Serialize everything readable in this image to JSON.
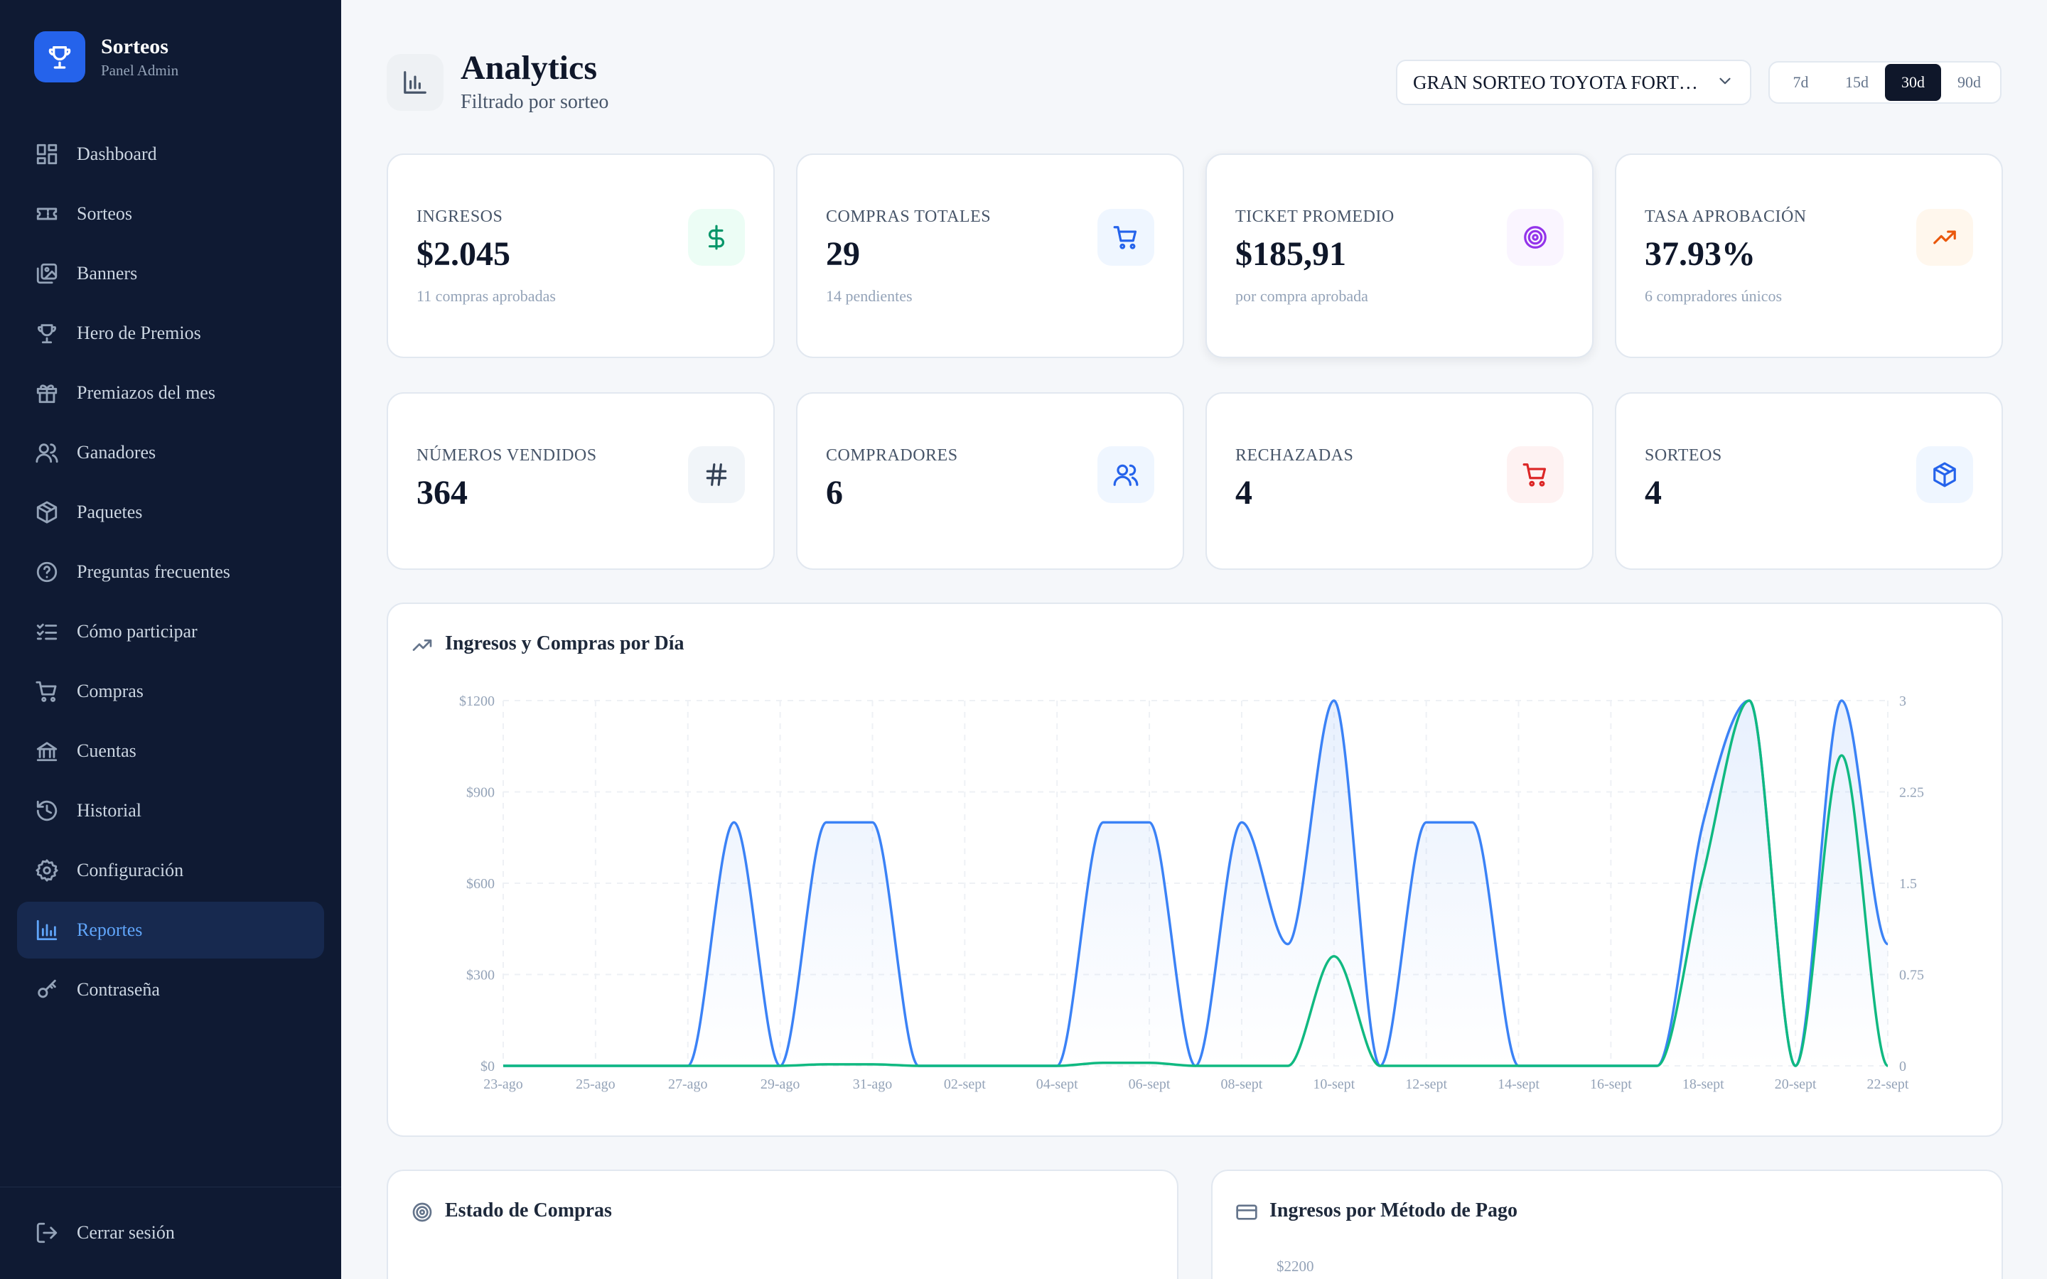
{
  "brand": {
    "title": "Sorteos",
    "subtitle": "Panel Admin"
  },
  "sidebar": {
    "items": [
      {
        "label": "Dashboard",
        "icon": "dashboard-icon"
      },
      {
        "label": "Sorteos",
        "icon": "ticket-icon"
      },
      {
        "label": "Banners",
        "icon": "images-icon"
      },
      {
        "label": "Hero de Premios",
        "icon": "trophy-icon"
      },
      {
        "label": "Premiazos del mes",
        "icon": "gift-icon"
      },
      {
        "label": "Ganadores",
        "icon": "users-icon"
      },
      {
        "label": "Paquetes",
        "icon": "package-icon"
      },
      {
        "label": "Preguntas frecuentes",
        "icon": "help-circle-icon"
      },
      {
        "label": "Cómo participar",
        "icon": "list-checks-icon"
      },
      {
        "label": "Compras",
        "icon": "cart-icon"
      },
      {
        "label": "Cuentas",
        "icon": "bank-icon"
      },
      {
        "label": "Historial",
        "icon": "history-icon"
      },
      {
        "label": "Configuración",
        "icon": "gear-icon"
      },
      {
        "label": "Reportes",
        "icon": "bar-chart-icon",
        "active": true
      },
      {
        "label": "Contraseña",
        "icon": "key-icon"
      }
    ],
    "logout": "Cerrar sesión"
  },
  "header": {
    "title": "Analytics",
    "subtitle": "Filtrado por sorteo",
    "sorteo_selected": "GRAN SORTEO TOYOTA FORTUNER",
    "ranges": [
      "7d",
      "15d",
      "30d",
      "90d"
    ],
    "active_range": "30d"
  },
  "stats": [
    {
      "label": "INGRESOS",
      "value": "$2.045",
      "note": "11 compras aprobadas",
      "icon": "dollar-icon",
      "color": "#059669",
      "bg": "#ecfdf5"
    },
    {
      "label": "COMPRAS TOTALES",
      "value": "29",
      "note": "14 pendientes",
      "icon": "cart-icon",
      "color": "#2563eb",
      "bg": "#eff6ff"
    },
    {
      "label": "TICKET PROMEDIO",
      "value": "$185,91",
      "note": "por compra aprobada",
      "icon": "target-icon",
      "color": "#9333ea",
      "bg": "#faf5ff"
    },
    {
      "label": "TASA APROBACIÓN",
      "value": "37.93%",
      "note": "6 compradores únicos",
      "icon": "trending-up-icon",
      "color": "#ea580c",
      "bg": "#fff7ed"
    },
    {
      "label": "NÚMEROS VENDIDOS",
      "value": "364",
      "note": "",
      "icon": "hash-icon",
      "color": "#334155",
      "bg": "#f1f5f9"
    },
    {
      "label": "COMPRADORES",
      "value": "6",
      "note": "",
      "icon": "users-icon",
      "color": "#2563eb",
      "bg": "#eff6ff"
    },
    {
      "label": "RECHAZADAS",
      "value": "4",
      "note": "",
      "icon": "cart-icon",
      "color": "#dc2626",
      "bg": "#fef2f2"
    },
    {
      "label": "SORTEOS",
      "value": "4",
      "note": "",
      "icon": "package-icon",
      "color": "#2563eb",
      "bg": "#eff6ff"
    }
  ],
  "chart_card": {
    "title": "Ingresos y Compras por Día"
  },
  "chart_data": {
    "type": "line",
    "title": "Ingresos y Compras por Día",
    "x": [
      "23-ago",
      "24-ago",
      "25-ago",
      "26-ago",
      "27-ago",
      "28-ago",
      "29-ago",
      "30-ago",
      "31-ago",
      "01-sept",
      "02-sept",
      "03-sept",
      "04-sept",
      "05-sept",
      "06-sept",
      "07-sept",
      "08-sept",
      "09-sept",
      "10-sept",
      "11-sept",
      "12-sept",
      "13-sept",
      "14-sept",
      "15-sept",
      "16-sept",
      "17-sept",
      "18-sept",
      "19-sept",
      "20-sept",
      "21-sept",
      "22-sept"
    ],
    "x_tick_labels": [
      "23-ago",
      "25-ago",
      "27-ago",
      "29-ago",
      "31-ago",
      "02-sept",
      "04-sept",
      "06-sept",
      "08-sept",
      "10-sept",
      "12-sept",
      "14-sept",
      "16-sept",
      "18-sept",
      "20-sept",
      "22-sept"
    ],
    "series": [
      {
        "axis": "left",
        "color": "#3b82f6",
        "values": [
          0,
          0,
          0,
          0,
          0,
          2,
          0,
          2,
          2,
          0,
          0,
          0,
          0,
          2,
          2,
          0,
          2,
          1,
          3,
          0,
          2,
          2,
          0,
          0,
          0,
          0,
          2,
          3,
          0,
          3,
          1
        ]
      },
      {
        "axis": "right",
        "color": "#10b981",
        "values": [
          0,
          0,
          0,
          0,
          0,
          0,
          0,
          5,
          5,
          0,
          0,
          0,
          0,
          10,
          10,
          0,
          0,
          0,
          360,
          0,
          0,
          0,
          0,
          0,
          0,
          0,
          630,
          1200,
          0,
          1020,
          0
        ]
      }
    ],
    "y_left": {
      "ticks": [
        0,
        0.75,
        1.5,
        2.25,
        3
      ],
      "labels": [
        "0",
        "0.75",
        "1.5",
        "2.25",
        "3"
      ],
      "range": [
        0,
        3
      ]
    },
    "y_right": {
      "ticks": [
        0,
        300,
        600,
        900,
        1200
      ],
      "labels": [
        "$0",
        "$300",
        "$600",
        "$900",
        "$1200"
      ],
      "range": [
        0,
        1200
      ]
    }
  },
  "bottom": {
    "left_title": "Estado de Compras",
    "right_title": "Ingresos por Método de Pago",
    "right_first_tick": "$2200"
  }
}
